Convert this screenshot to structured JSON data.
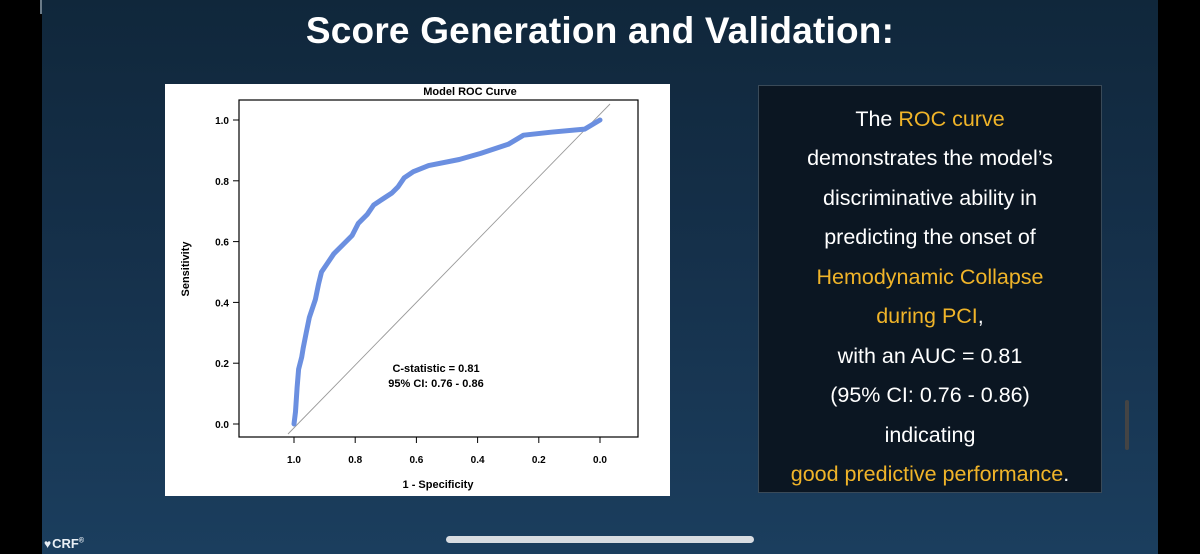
{
  "slide": {
    "title": "Score Generation and Validation:"
  },
  "chart_data": {
    "type": "line",
    "title": "Model ROC Curve",
    "xlabel": "1 - Specificity",
    "ylabel": "Sensitivity",
    "x_reversed": true,
    "xlim": [
      1.0,
      0.0
    ],
    "ylim": [
      0.0,
      1.0
    ],
    "x_ticks": [
      "1.0",
      "0.8",
      "0.6",
      "0.4",
      "0.2",
      "0.0"
    ],
    "y_ticks": [
      "0.0",
      "0.2",
      "0.4",
      "0.6",
      "0.8",
      "1.0"
    ],
    "grid": false,
    "series": [
      {
        "color": "#6b8fe0",
        "points": [
          [
            1.0,
            0.0
          ],
          [
            0.995,
            0.04
          ],
          [
            0.99,
            0.12
          ],
          [
            0.985,
            0.18
          ],
          [
            0.975,
            0.22
          ],
          [
            0.97,
            0.25
          ],
          [
            0.96,
            0.3
          ],
          [
            0.95,
            0.35
          ],
          [
            0.93,
            0.41
          ],
          [
            0.92,
            0.46
          ],
          [
            0.91,
            0.5
          ],
          [
            0.89,
            0.53
          ],
          [
            0.87,
            0.56
          ],
          [
            0.84,
            0.59
          ],
          [
            0.81,
            0.62
          ],
          [
            0.79,
            0.66
          ],
          [
            0.76,
            0.69
          ],
          [
            0.74,
            0.72
          ],
          [
            0.71,
            0.74
          ],
          [
            0.68,
            0.76
          ],
          [
            0.66,
            0.78
          ],
          [
            0.64,
            0.81
          ],
          [
            0.61,
            0.83
          ],
          [
            0.56,
            0.85
          ],
          [
            0.46,
            0.87
          ],
          [
            0.39,
            0.89
          ],
          [
            0.3,
            0.92
          ],
          [
            0.25,
            0.95
          ],
          [
            0.16,
            0.96
          ],
          [
            0.05,
            0.97
          ],
          [
            0.0,
            1.0
          ]
        ]
      }
    ],
    "reference_line": {
      "from": [
        1.0,
        0.0
      ],
      "to": [
        0.0,
        1.0
      ],
      "color": "#9a9a9a"
    },
    "annotations": [
      "C-statistic = 0.81",
      "95% CI: 0.76 - 0.86"
    ]
  },
  "summary": {
    "line1_pre": "The ",
    "line1_hl": "ROC curve",
    "line2": "demonstrates the model’s",
    "line3": "discriminative ability in",
    "line4": "predicting the onset of",
    "line5_hl": "Hemodynamic Collapse",
    "line6_hl": "during PCI",
    "line6_post": ",",
    "line7": "with an AUC = 0.81",
    "line8": "(95% CI: 0.76 - 0.86)",
    "line9": "indicating",
    "line10_hl": "good predictive performance",
    "line10_post": ".",
    "highlight_color": "#f0b429"
  },
  "logo": {
    "text": "CRF",
    "mark": "®"
  }
}
